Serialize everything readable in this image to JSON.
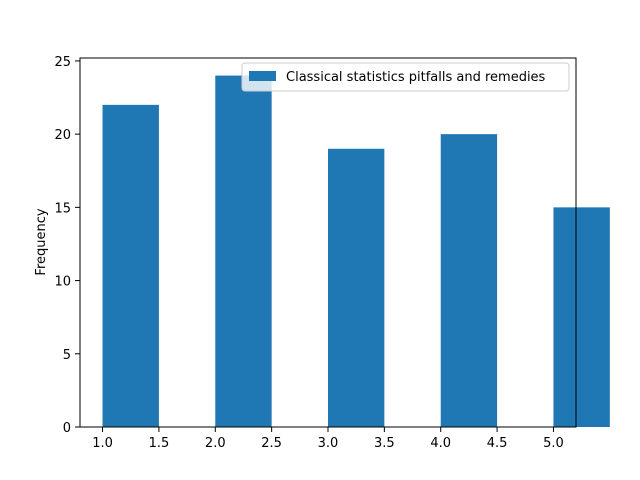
{
  "chart_data": {
    "type": "bar",
    "x": [
      1,
      2,
      3,
      4,
      5
    ],
    "values": [
      22,
      24,
      19,
      20,
      15
    ],
    "bin_width": 0.5,
    "series": [
      {
        "name": "Classical statistics pitfalls and remedies",
        "values": [
          22,
          24,
          19,
          20,
          15
        ]
      }
    ],
    "title": "",
    "xlabel": "",
    "ylabel": "Frequency",
    "xlim": [
      0.8,
      5.2
    ],
    "ylim": [
      0,
      25.2
    ],
    "xticks": [
      "1.0",
      "1.5",
      "2.0",
      "2.5",
      "3.0",
      "3.5",
      "4.0",
      "4.5",
      "5.0"
    ],
    "yticks": [
      "0",
      "5",
      "10",
      "15",
      "20",
      "25"
    ],
    "grid": false,
    "legend_placement": "top-right",
    "color": "#1f77b4"
  }
}
